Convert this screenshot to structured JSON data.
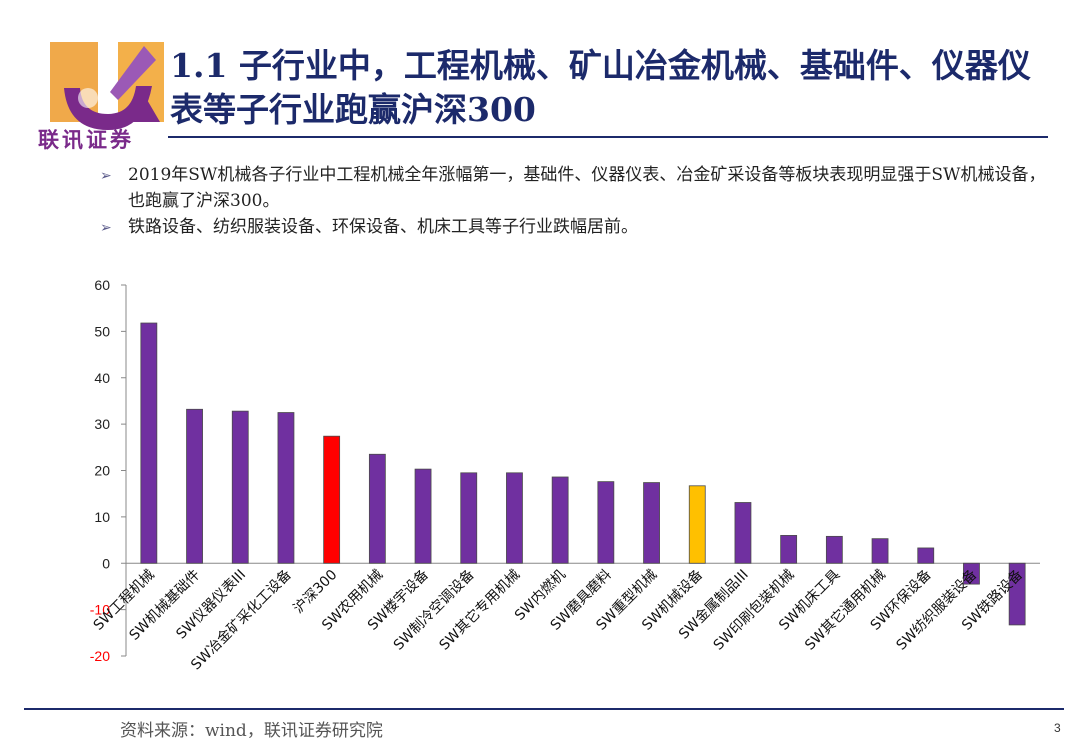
{
  "logo": {
    "text": "联讯证券",
    "icon": "company-logo-icon"
  },
  "title": "1.1 子行业中，工程机械、矿山冶金机械、基础件、仪器仪表等子行业跑赢沪深300",
  "bullets": [
    "2019年SW机械各子行业中工程机械全年涨幅第一，基础件、仪器仪表、冶金矿采设备等板块表现明显强于SW机械设备，也跑赢了沪深300。",
    "铁路设备、纺织服装设备、环保设备、机床工具等子行业跌幅居前。"
  ],
  "chart_data": {
    "type": "bar",
    "categories": [
      "SW工程机械",
      "SW机械基础件",
      "SW仪器仪表III",
      "SW冶金矿采化工设备",
      "沪深300",
      "SW农用机械",
      "SW楼宇设备",
      "SW制冷空调设备",
      "SW其它专用机械",
      "SW内燃机",
      "SW磨具磨料",
      "SW重型机械",
      "SW机械设备",
      "SW金属制品III",
      "SW印刷包装机械",
      "SW机床工具",
      "SW其它通用机械",
      "SW环保设备",
      "SW纺织服装设备",
      "SW铁路设备"
    ],
    "values": [
      51.8,
      33.2,
      32.8,
      32.5,
      27.4,
      23.5,
      20.3,
      19.5,
      19.5,
      18.6,
      17.6,
      17.4,
      16.7,
      13.1,
      6.0,
      5.8,
      5.3,
      3.3,
      -4.5,
      -13.3
    ],
    "colors": [
      "#7030a0",
      "#7030a0",
      "#7030a0",
      "#7030a0",
      "#ff0000",
      "#7030a0",
      "#7030a0",
      "#7030a0",
      "#7030a0",
      "#7030a0",
      "#7030a0",
      "#7030a0",
      "#ffc000",
      "#7030a0",
      "#7030a0",
      "#7030a0",
      "#7030a0",
      "#7030a0",
      "#7030a0",
      "#7030a0"
    ],
    "ylim": [
      -20,
      60
    ],
    "yticks": [
      60,
      50,
      40,
      30,
      20,
      10,
      0,
      -10,
      -20
    ],
    "negative_tick_color": "#ff0000",
    "grid": false,
    "legend": false
  },
  "footer": {
    "source": "资料来源：wind，联讯证券研究院",
    "page": "3"
  }
}
